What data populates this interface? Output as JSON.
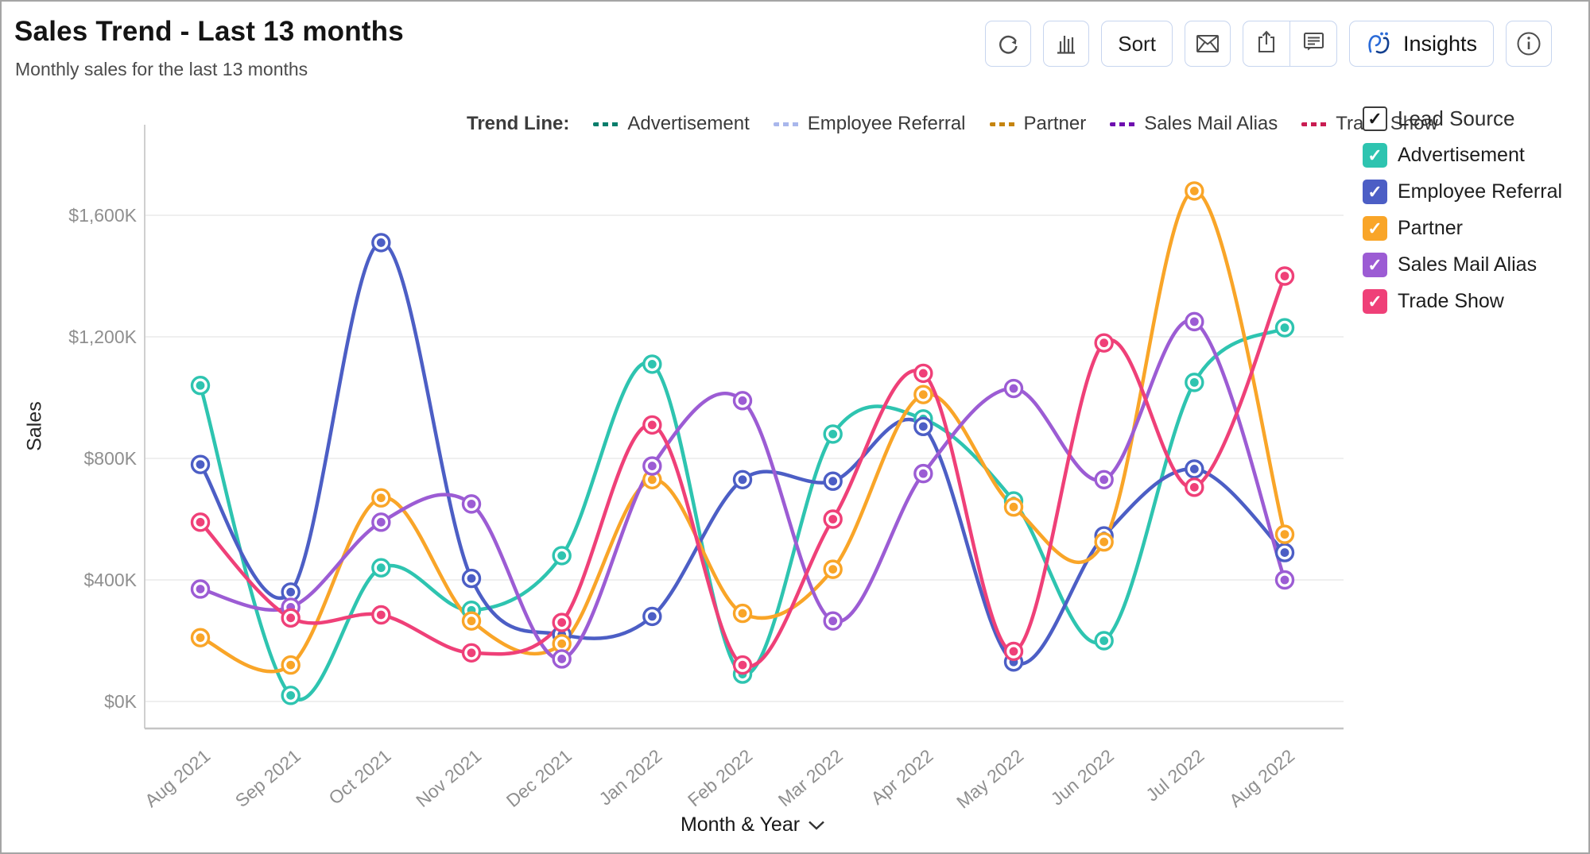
{
  "header": {
    "title": "Sales Trend - Last 13 months",
    "subtitle": "Monthly sales for the last 13 months"
  },
  "toolbar": {
    "sort_label": "Sort",
    "insights_label": "Insights",
    "icons": [
      "refresh-icon",
      "bar-chart-icon",
      "mail-icon",
      "share-icon",
      "comment-icon",
      "zia-icon",
      "info-icon"
    ]
  },
  "trend_legend": {
    "label": "Trend Line:",
    "items": [
      {
        "label": "Advertisement",
        "color": "#0a7e6c"
      },
      {
        "label": "Employee Referral",
        "color": "#a9b7ec"
      },
      {
        "label": "Partner",
        "color": "#c5840f"
      },
      {
        "label": "Sales Mail Alias",
        "color": "#6e0faf"
      },
      {
        "label": "Trade Show",
        "color": "#c91d52"
      }
    ]
  },
  "lead_source_legend": {
    "title": "Lead Source",
    "master_checked": true,
    "items": [
      {
        "label": "Advertisement",
        "color": "#2ec4b0",
        "checked": true
      },
      {
        "label": "Employee Referral",
        "color": "#4c5ec5",
        "checked": true
      },
      {
        "label": "Partner",
        "color": "#f9a528",
        "checked": true
      },
      {
        "label": "Sales Mail Alias",
        "color": "#9c5cd4",
        "checked": true
      },
      {
        "label": "Trade Show",
        "color": "#ef4078",
        "checked": true
      }
    ]
  },
  "chart_data": {
    "type": "line",
    "title": "Sales Trend - Last 13 months",
    "xlabel": "Month & Year",
    "ylabel": "Sales",
    "categories": [
      "Aug 2021",
      "Sep 2021",
      "Oct 2021",
      "Nov 2021",
      "Dec 2021",
      "Jan 2022",
      "Feb 2022",
      "Mar 2022",
      "Apr 2022",
      "May 2022",
      "Jun 2022",
      "Jul 2022",
      "Aug 2022"
    ],
    "yticks": [
      {
        "label": "$0K",
        "value": 0
      },
      {
        "label": "$400K",
        "value": 400
      },
      {
        "label": "$800K",
        "value": 800
      },
      {
        "label": "$1,200K",
        "value": 1200
      },
      {
        "label": "$1,600K",
        "value": 1600
      }
    ],
    "ylim": [
      -90,
      1885
    ],
    "unit": "$K",
    "grid": true,
    "legend_position": "right",
    "trend_lines": {
      "style": "dashed",
      "fit": "polynomial-degree-4"
    },
    "series": [
      {
        "name": "Advertisement",
        "color": "#2ec4b0",
        "trend_color": "#0a7e6c",
        "values": [
          1040,
          20,
          440,
          300,
          480,
          1110,
          90,
          880,
          930,
          660,
          200,
          1050,
          1230
        ]
      },
      {
        "name": "Employee Referral",
        "color": "#4c5ec5",
        "trend_color": "#a9b7ec",
        "values": [
          780,
          360,
          1510,
          405,
          220,
          280,
          730,
          725,
          905,
          130,
          545,
          765,
          490
        ]
      },
      {
        "name": "Partner",
        "color": "#f9a528",
        "trend_color": "#c5840f",
        "values": [
          210,
          120,
          670,
          265,
          190,
          730,
          290,
          435,
          1010,
          640,
          525,
          1680,
          550
        ]
      },
      {
        "name": "Sales Mail Alias",
        "color": "#9c5cd4",
        "trend_color": "#6e0faf",
        "values": [
          370,
          310,
          590,
          650,
          140,
          775,
          990,
          265,
          750,
          1030,
          730,
          1250,
          400
        ]
      },
      {
        "name": "Trade Show",
        "color": "#ef4078",
        "trend_color": "#c91d52",
        "values": [
          590,
          275,
          285,
          160,
          260,
          910,
          120,
          600,
          1080,
          165,
          1180,
          705,
          1400
        ]
      }
    ]
  }
}
